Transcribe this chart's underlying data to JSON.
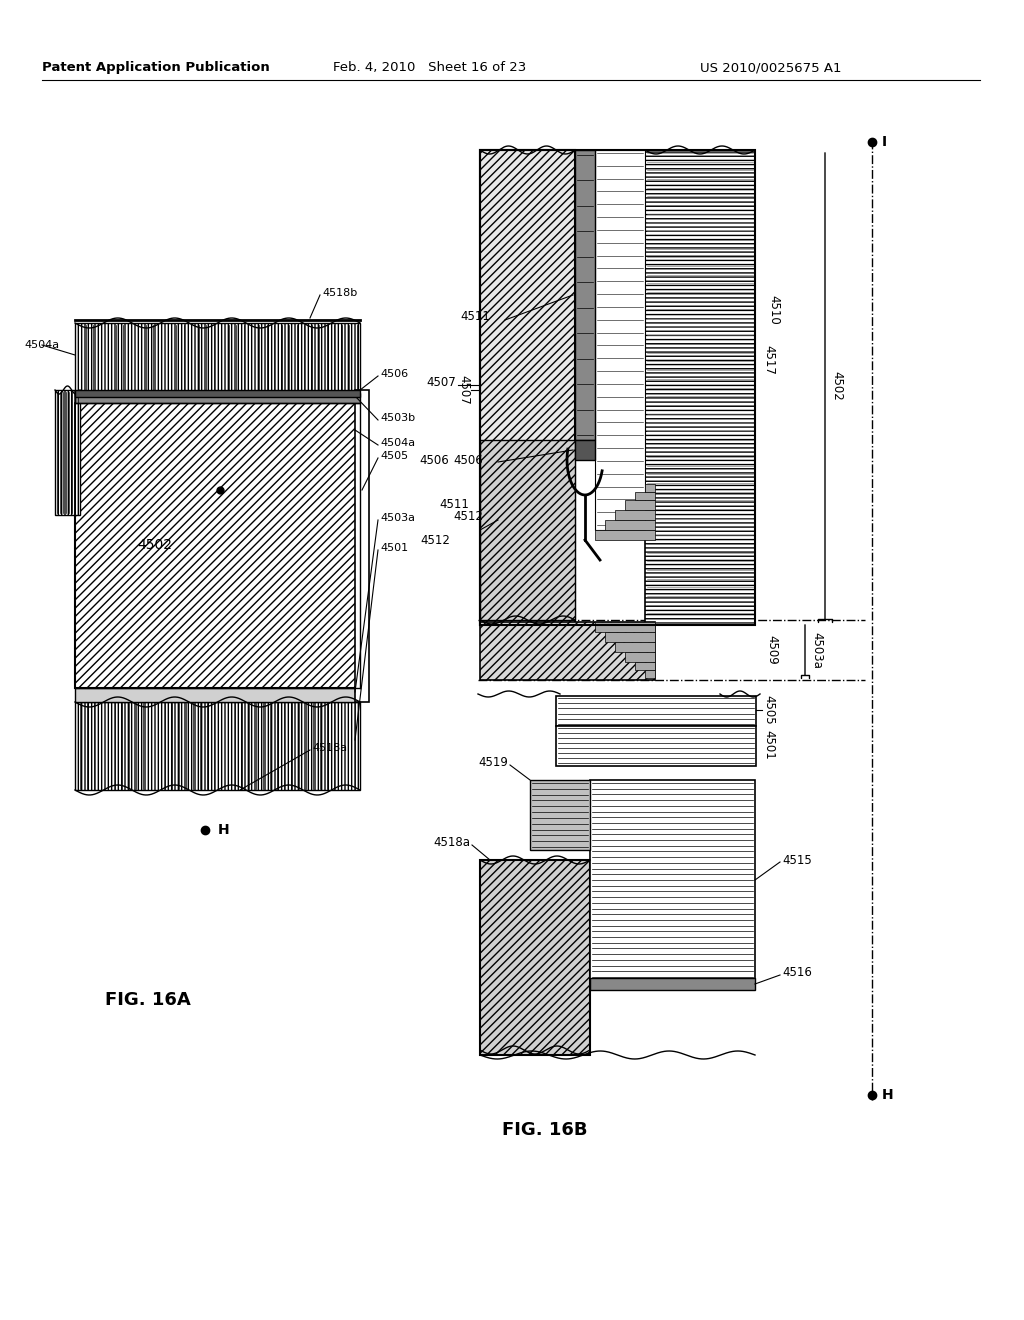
{
  "title_left": "Patent Application Publication",
  "title_center": "Feb. 4, 2010   Sheet 16 of 23",
  "title_right": "US 2010/0025675 A1",
  "fig_label_a": "FIG. 16A",
  "fig_label_b": "FIG. 16B",
  "background_color": "#ffffff"
}
